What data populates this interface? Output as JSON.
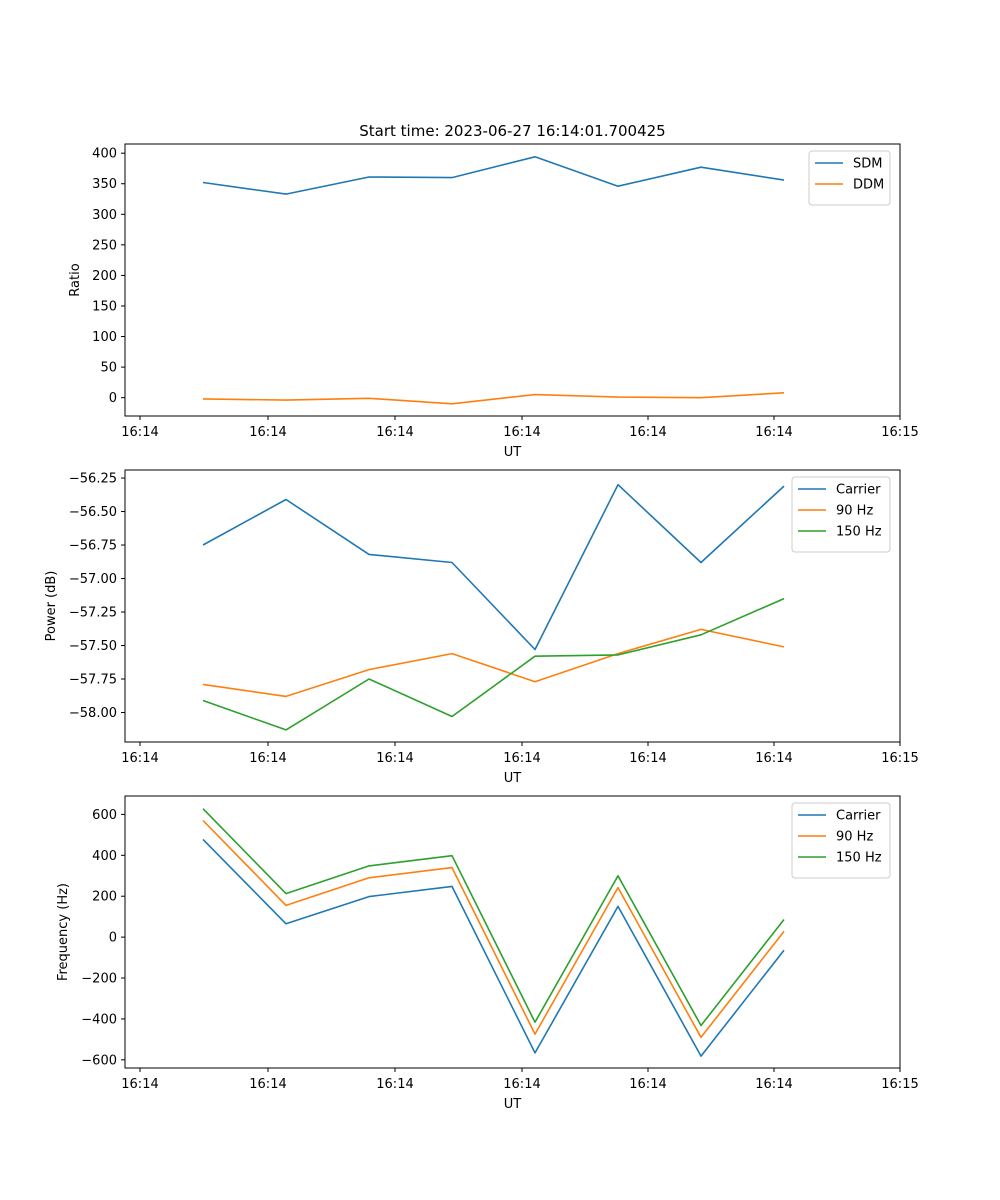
{
  "title": "Start time: 2023-06-27 16:14:01.700425",
  "colors": {
    "series1": "#1f77b4",
    "series2": "#ff7f0e",
    "series3": "#2ca02c"
  },
  "x_tick_labels": [
    "16:14",
    "16:14",
    "16:14",
    "16:14",
    "16:14",
    "16:14",
    "16:15"
  ],
  "chart_data": [
    {
      "type": "line",
      "xlabel": "UT",
      "ylabel": "Ratio",
      "ylim": [
        -30,
        415
      ],
      "yticks": [
        0,
        50,
        100,
        150,
        200,
        250,
        300,
        350,
        400
      ],
      "x_index": [
        0,
        1,
        2,
        3,
        4,
        5,
        6,
        7
      ],
      "legend": "top-right",
      "grid": false,
      "series": [
        {
          "name": "SDM",
          "color": "#1f77b4",
          "values": [
            352,
            333,
            361,
            360,
            394,
            346,
            377,
            356
          ]
        },
        {
          "name": "DDM",
          "color": "#ff7f0e",
          "values": [
            -2,
            -4,
            -1,
            -10,
            5,
            1,
            0,
            8
          ]
        }
      ]
    },
    {
      "type": "line",
      "xlabel": "UT",
      "ylabel": "Power (dB)",
      "ylim": [
        -58.22,
        -56.19
      ],
      "yticks": [
        -58.0,
        -57.75,
        -57.5,
        -57.25,
        -57.0,
        -56.75,
        -56.5,
        -56.25
      ],
      "ytick_labels": [
        "−58.00",
        "−57.75",
        "−57.50",
        "−57.25",
        "−57.00",
        "−56.75",
        "−56.50",
        "−56.25"
      ],
      "x_index": [
        0,
        1,
        2,
        3,
        4,
        5,
        6,
        7
      ],
      "legend": "top-right",
      "grid": false,
      "series": [
        {
          "name": "Carrier",
          "color": "#1f77b4",
          "values": [
            -56.75,
            -56.41,
            -56.82,
            -56.88,
            -57.53,
            -56.3,
            -56.88,
            -56.31
          ]
        },
        {
          "name": "90 Hz",
          "color": "#ff7f0e",
          "values": [
            -57.79,
            -57.88,
            -57.68,
            -57.56,
            -57.77,
            -57.56,
            -57.38,
            -57.51
          ]
        },
        {
          "name": "150 Hz",
          "color": "#2ca02c",
          "values": [
            -57.91,
            -58.13,
            -57.75,
            -58.03,
            -57.58,
            -57.57,
            -57.42,
            -57.15
          ]
        }
      ]
    },
    {
      "type": "line",
      "xlabel": "UT",
      "ylabel": "Frequency (Hz)",
      "ylim": [
        -640,
        690
      ],
      "yticks": [
        -600,
        -400,
        -200,
        0,
        200,
        400,
        600
      ],
      "ytick_labels": [
        "−600",
        "−400",
        "−200",
        "0",
        "200",
        "400",
        "600"
      ],
      "x_index": [
        0,
        1,
        2,
        3,
        4,
        5,
        6,
        7
      ],
      "legend": "top-right",
      "grid": false,
      "series": [
        {
          "name": "Carrier",
          "color": "#1f77b4",
          "values": [
            478,
            65,
            198,
            248,
            -566,
            150,
            -582,
            -64
          ]
        },
        {
          "name": "90 Hz",
          "color": "#ff7f0e",
          "values": [
            570,
            155,
            290,
            340,
            -474,
            242,
            -490,
            28
          ]
        },
        {
          "name": "150 Hz",
          "color": "#2ca02c",
          "values": [
            628,
            213,
            348,
            398,
            -416,
            300,
            -432,
            86
          ]
        }
      ]
    }
  ]
}
